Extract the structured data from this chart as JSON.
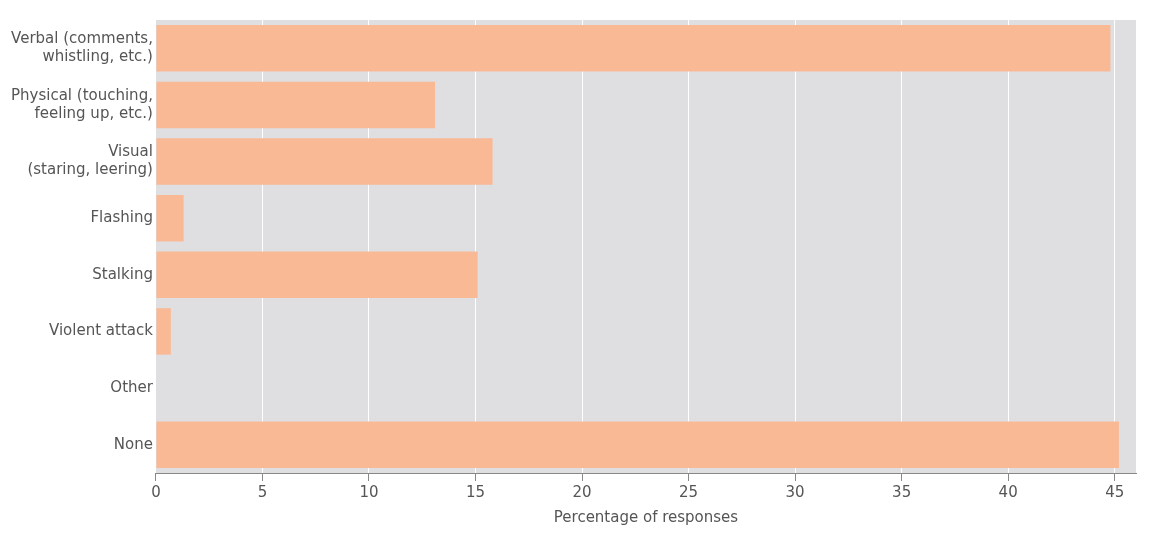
{
  "chart_data": {
    "type": "bar",
    "orientation": "horizontal",
    "categories": [
      "Verbal (comments,\nwhistling, etc.)",
      "Physical (touching,\nfeeling up, etc.)",
      "Visual\n(staring, leering)",
      "Flashing",
      "Stalking",
      "Violent attack",
      "Other",
      "None"
    ],
    "values": [
      44.8,
      13.1,
      15.8,
      1.3,
      15.1,
      0.7,
      0,
      45.2
    ],
    "color": "#f9b995",
    "xlim": [
      0,
      46
    ],
    "xticks": [
      0,
      5,
      10,
      15,
      20,
      25,
      30,
      35,
      40,
      45
    ],
    "xlabel": "Percentage of responses",
    "grid": "x",
    "legend": false
  }
}
